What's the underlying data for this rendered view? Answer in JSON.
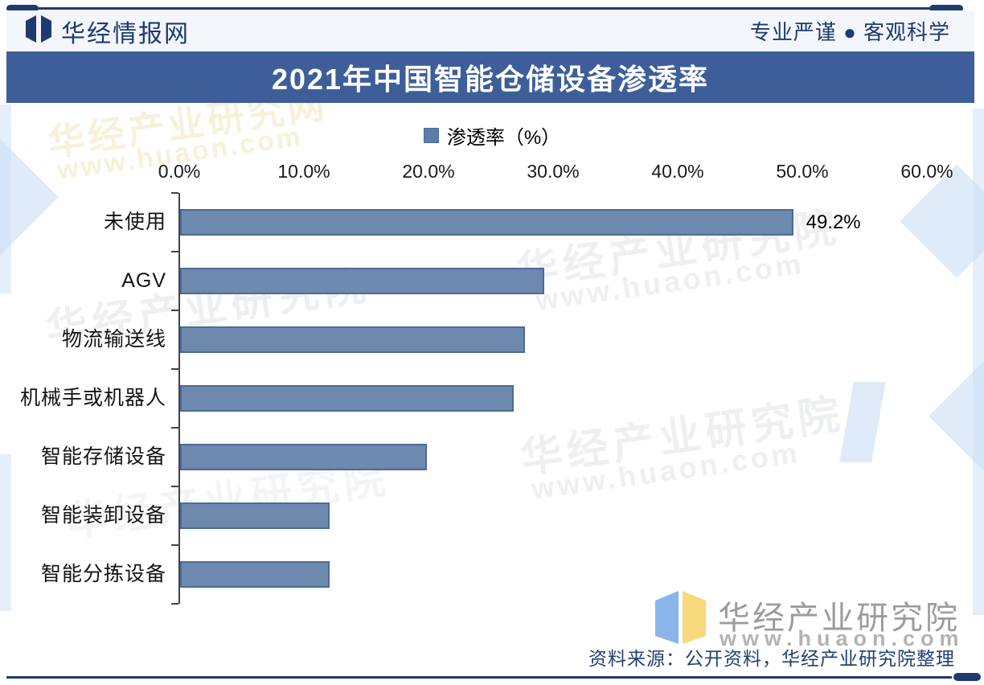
{
  "header": {
    "brand": "华经情报网",
    "slogan": "专业严谨 ● 客观科学"
  },
  "title": "2021年中国智能仓储设备渗透率",
  "chart_data": {
    "type": "bar",
    "orientation": "horizontal",
    "title": "2021年中国智能仓储设备渗透率",
    "legend_label": "渗透率（%）",
    "legend_position": "top-center",
    "categories": [
      "未使用",
      "AGV",
      "物流输送线",
      "机械手或机器人",
      "智能存储设备",
      "智能装卸设备",
      "智能分拣设备"
    ],
    "values": [
      49.2,
      29.2,
      27.7,
      26.8,
      19.8,
      12.0,
      12.0
    ],
    "value_labels": [
      "49.2%",
      "",
      "",
      "",
      "",
      "",
      ""
    ],
    "x_ticks": [
      "0.0%",
      "10.0%",
      "20.0%",
      "30.0%",
      "40.0%",
      "50.0%",
      "60.0%"
    ],
    "x_tick_values": [
      0,
      10,
      20,
      30,
      40,
      50,
      60
    ],
    "xlim": [
      0,
      60
    ],
    "grid": false
  },
  "footer": {
    "brand": "华经产业研究院",
    "url": "www.huaon.com",
    "source": "资料来源：公开资料，华经产业研究院整理"
  },
  "watermarks": {
    "brand": "华经产业研究院",
    "url": "www.huaon.com",
    "web_brand": "华经产业研究网"
  },
  "colors": {
    "navy": "#1e3a70",
    "title_bar_bg": "#3d5e99",
    "header_bg": "#f3f6fb",
    "bar_fill": "#6d89ae",
    "bar_border": "#4c6b96",
    "legend_square": "#5b7dab",
    "source_text": "#21406f",
    "footer_gray": "#9c9c9c",
    "logo_blue_page": "#8ab5ea",
    "logo_yellow_page": "#f8d87c"
  }
}
